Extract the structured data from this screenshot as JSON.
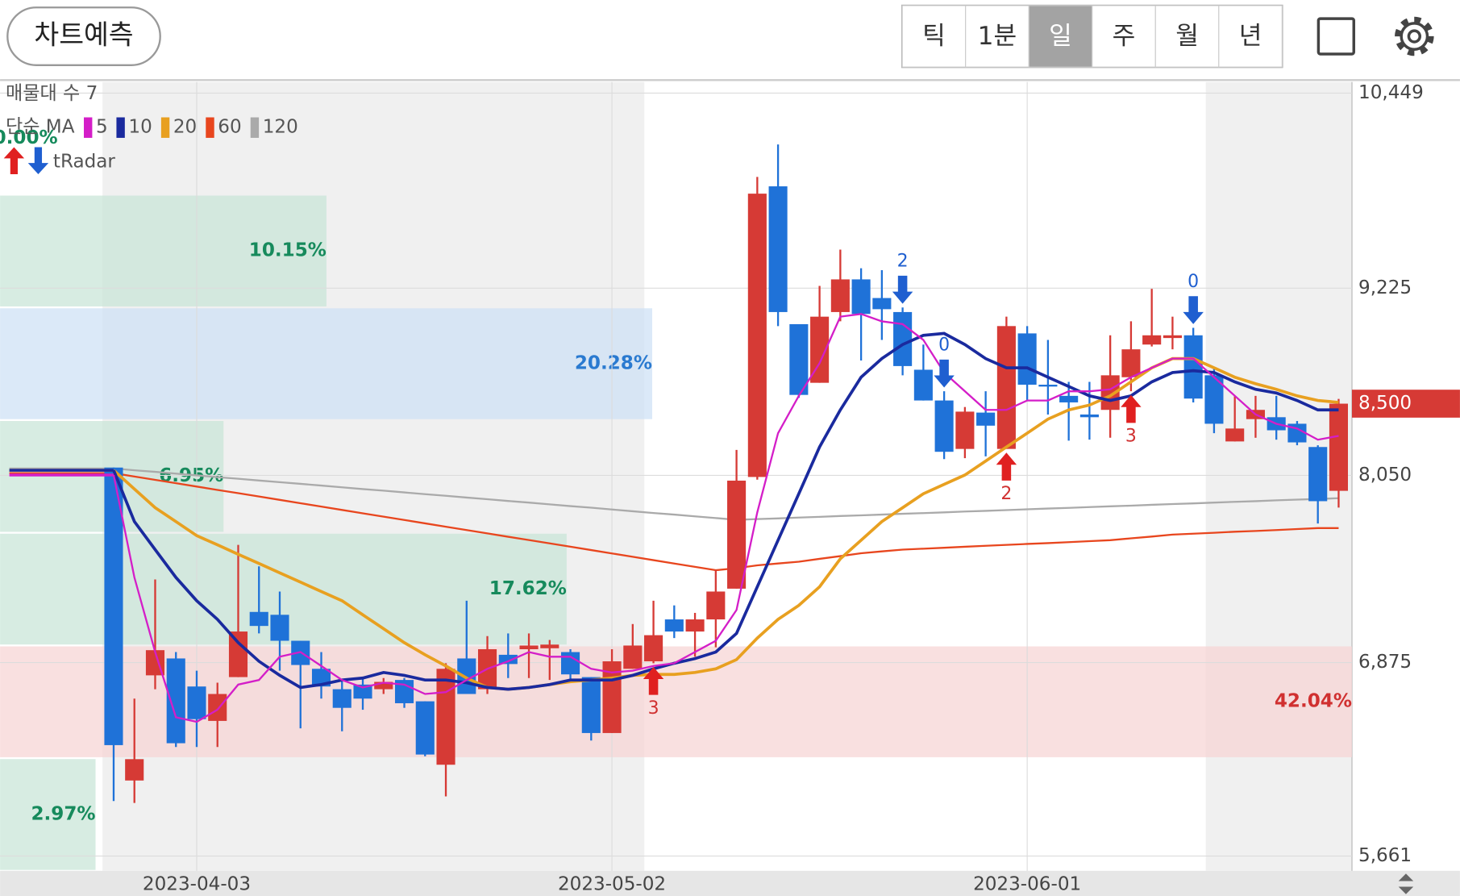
{
  "toolbar": {
    "button": "차트예측",
    "periods": [
      "틱",
      "1분",
      "일",
      "주",
      "월",
      "년"
    ],
    "selected_period": 2
  },
  "chart_data": {
    "type": "candlestick",
    "volume_profile_legend": "매물대 수 7",
    "ma_legend": "단순 MA",
    "signal_legend": "tRadar",
    "up_color": "#d63a35",
    "down_color": "#1f72d8",
    "ylim": [
      5568,
      10519
    ],
    "yticks": [
      {
        "value": 10449,
        "label": "10,449"
      },
      {
        "value": 9225,
        "label": "9,225"
      },
      {
        "value": 8050,
        "label": "8,050"
      },
      {
        "value": 6875,
        "label": "6,875"
      },
      {
        "value": 5661,
        "label": "5,661"
      }
    ],
    "grid": true,
    "last_price": {
      "value": 8500,
      "label": "8,500"
    },
    "categories": [
      null,
      null,
      null,
      null,
      "2023-04-03",
      null,
      null,
      null,
      null,
      null,
      null,
      null,
      null,
      null,
      null,
      null,
      null,
      null,
      null,
      null,
      null,
      null,
      null,
      null,
      "2023-05-02",
      null,
      null,
      null,
      null,
      null,
      null,
      null,
      null,
      null,
      null,
      null,
      null,
      null,
      null,
      null,
      null,
      null,
      null,
      null,
      "2023-06-01",
      null,
      null,
      null,
      null,
      null,
      null,
      null,
      null,
      null,
      null,
      null,
      null,
      null,
      null,
      null
    ],
    "open": [
      8099,
      6135,
      6795,
      6901,
      6725,
      6509,
      6784,
      7193,
      7175,
      7012,
      6836,
      6708,
      6737,
      6708,
      6766,
      6632,
      6234,
      6901,
      6708,
      6924,
      6959,
      6965,
      6941,
      6784,
      6433,
      6836,
      6883,
      7146,
      7070,
      7146,
      7339,
      8040,
      9864,
      8999,
      8631,
      9075,
      9280,
      9163,
      9075,
      8713,
      8520,
      8216,
      8444,
      8216,
      8941,
      8619,
      8549,
      8432,
      8461,
      8666,
      8871,
      8912,
      8929,
      8678,
      8263,
      8403,
      8415,
      8374,
      8228,
      7953
    ],
    "high": [
      8099,
      6649,
      7397,
      6941,
      6824,
      6749,
      7614,
      7479,
      7321,
      7012,
      6941,
      6766,
      6778,
      6778,
      6778,
      6632,
      6871,
      7263,
      7041,
      7058,
      7058,
      7017,
      6959,
      6784,
      6959,
      7117,
      7263,
      7234,
      7187,
      7456,
      8210,
      9923,
      10127,
      8999,
      9239,
      9467,
      9350,
      9338,
      9104,
      8871,
      8578,
      8479,
      8578,
      9046,
      8987,
      8900,
      8637,
      8637,
      8929,
      9017,
      9221,
      9046,
      8976,
      8725,
      8549,
      8549,
      8549,
      8391,
      8239,
      8530
    ],
    "low": [
      6006,
      5994,
      6708,
      6345,
      6345,
      6345,
      6784,
      7058,
      6824,
      6462,
      6649,
      6444,
      6579,
      6678,
      6591,
      6287,
      6035,
      6678,
      6678,
      6778,
      6778,
      6766,
      6766,
      6386,
      6433,
      6836,
      6871,
      7029,
      6912,
      6971,
      7339,
      8023,
      8987,
      8537,
      8631,
      9017,
      8771,
      8900,
      8678,
      8520,
      8152,
      8158,
      8169,
      8216,
      8520,
      8432,
      8268,
      8274,
      8286,
      8578,
      8859,
      8841,
      8508,
      8315,
      8263,
      8286,
      8274,
      8239,
      7748,
      7848
    ],
    "close": [
      6357,
      6269,
      6953,
      6369,
      6520,
      6678,
      7070,
      7105,
      7012,
      6860,
      6725,
      6591,
      6649,
      6754,
      6620,
      6298,
      6836,
      6678,
      6959,
      6866,
      6982,
      6988,
      6801,
      6433,
      6883,
      6982,
      7047,
      7070,
      7146,
      7321,
      8017,
      9818,
      9075,
      8555,
      9046,
      9280,
      9063,
      9093,
      8736,
      8520,
      8198,
      8450,
      8362,
      8987,
      8619,
      8608,
      8508,
      8415,
      8678,
      8841,
      8929,
      8929,
      8532,
      8374,
      8344,
      8461,
      8333,
      8257,
      7888,
      8500
    ],
    "ma": [
      {
        "name": "120",
        "color": "#aaaaaa",
        "values": [
          8093,
          8082,
          8072,
          8061,
          8050,
          8039,
          8029,
          8018,
          8007,
          7997,
          7986,
          7975,
          7964,
          7954,
          7943,
          7932,
          7922,
          7911,
          7900,
          7889,
          7879,
          7868,
          7857,
          7847,
          7836,
          7825,
          7814,
          7804,
          7793,
          7782,
          7771,
          7776,
          7780,
          7785,
          7790,
          7795,
          7799,
          7804,
          7809,
          7813,
          7818,
          7823,
          7827,
          7832,
          7837,
          7842,
          7846,
          7851,
          7856,
          7860,
          7865,
          7870,
          7874,
          7879,
          7884,
          7888,
          7893,
          7898,
          7902,
          7907
        ]
      },
      {
        "name": "60",
        "color": "#e8461e",
        "values": [
          8064,
          8043,
          8022,
          8001,
          7980,
          7959,
          7938,
          7917,
          7896,
          7875,
          7854,
          7833,
          7812,
          7791,
          7770,
          7749,
          7728,
          7707,
          7686,
          7665,
          7644,
          7623,
          7602,
          7581,
          7560,
          7539,
          7518,
          7497,
          7476,
          7455,
          7468,
          7485,
          7497,
          7508,
          7526,
          7543,
          7561,
          7573,
          7584,
          7590,
          7596,
          7602,
          7608,
          7614,
          7620,
          7625,
          7631,
          7637,
          7643,
          7655,
          7666,
          7678,
          7684,
          7690,
          7696,
          7701,
          7707,
          7713,
          7719,
          7719
        ]
      },
      {
        "name": "20",
        "color": "#e8a020",
        "values": [
          8082,
          7964,
          7847,
          7760,
          7672,
          7614,
          7555,
          7497,
          7438,
          7380,
          7321,
          7263,
          7175,
          7088,
          7000,
          6924,
          6854,
          6778,
          6719,
          6708,
          6719,
          6737,
          6755,
          6766,
          6778,
          6795,
          6801,
          6801,
          6813,
          6836,
          6894,
          7029,
          7146,
          7234,
          7351,
          7526,
          7643,
          7760,
          7847,
          7935,
          7994,
          8052,
          8140,
          8228,
          8315,
          8403,
          8461,
          8491,
          8549,
          8637,
          8725,
          8783,
          8783,
          8725,
          8666,
          8625,
          8590,
          8549,
          8520,
          8508
        ]
      },
      {
        "name": "10",
        "color": "#1a2a9e",
        "values": [
          8082,
          7760,
          7584,
          7409,
          7263,
          7146,
          7000,
          6883,
          6795,
          6719,
          6737,
          6766,
          6778,
          6813,
          6795,
          6766,
          6766,
          6749,
          6719,
          6708,
          6719,
          6737,
          6766,
          6766,
          6766,
          6795,
          6836,
          6871,
          6900,
          6941,
          7058,
          7351,
          7643,
          7935,
          8228,
          8461,
          8666,
          8783,
          8871,
          8929,
          8941,
          8871,
          8783,
          8725,
          8725,
          8666,
          8608,
          8549,
          8520,
          8549,
          8637,
          8695,
          8707,
          8695,
          8637,
          8590,
          8567,
          8520,
          8461,
          8461
        ]
      },
      {
        "name": "5",
        "color": "#d41ec8",
        "values": [
          8052,
          7409,
          6941,
          6532,
          6503,
          6579,
          6737,
          6766,
          6912,
          6941,
          6854,
          6766,
          6719,
          6749,
          6737,
          6678,
          6690,
          6766,
          6836,
          6883,
          6941,
          6912,
          6912,
          6836,
          6813,
          6824,
          6854,
          6871,
          6941,
          7012,
          7205,
          7818,
          8315,
          8549,
          8754,
          9046,
          9063,
          9017,
          8999,
          8900,
          8695,
          8578,
          8461,
          8461,
          8520,
          8520,
          8578,
          8578,
          8590,
          8666,
          8725,
          8783,
          8783,
          8666,
          8549,
          8432,
          8374,
          8344,
          8274,
          8298
        ]
      }
    ],
    "buy_signals": [
      null,
      null,
      null,
      null,
      null,
      null,
      null,
      null,
      null,
      null,
      null,
      null,
      null,
      null,
      null,
      null,
      null,
      null,
      null,
      null,
      null,
      null,
      null,
      null,
      null,
      null,
      3,
      null,
      null,
      null,
      null,
      null,
      null,
      null,
      null,
      null,
      null,
      null,
      null,
      null,
      null,
      null,
      null,
      2,
      null,
      null,
      null,
      null,
      null,
      3,
      null,
      null,
      null,
      null,
      null,
      null,
      null,
      null,
      null,
      null
    ],
    "sell_signals": [
      null,
      null,
      null,
      null,
      null,
      null,
      null,
      null,
      null,
      null,
      null,
      null,
      null,
      null,
      null,
      null,
      null,
      null,
      null,
      null,
      null,
      null,
      null,
      null,
      null,
      null,
      null,
      null,
      null,
      null,
      null,
      null,
      null,
      null,
      null,
      null,
      null,
      null,
      2,
      null,
      0,
      null,
      null,
      null,
      null,
      null,
      null,
      null,
      null,
      null,
      null,
      null,
      0,
      null,
      null,
      null,
      null,
      null,
      null,
      null
    ],
    "volume_profile": {
      "values": [
        0,
        10.15,
        20.28,
        6.95,
        17.62,
        42.04,
        2.97
      ],
      "value_labels": [
        "0.00%",
        "10.15%",
        "20.28%",
        "6.95%",
        "17.62%",
        "42.04%",
        "2.97%"
      ],
      "colors": [
        "#c9e6d8",
        "#c9e6d8",
        "#cfe2f6",
        "#c9e6d8",
        "#c9e6d8",
        "#f7d6d6",
        "#c9e6d8"
      ],
      "label_colors": [
        "#168a5c",
        "#168a5c",
        "#2a7ad0",
        "#168a5c",
        "#168a5c",
        "#d03030",
        "#168a5c"
      ]
    }
  }
}
